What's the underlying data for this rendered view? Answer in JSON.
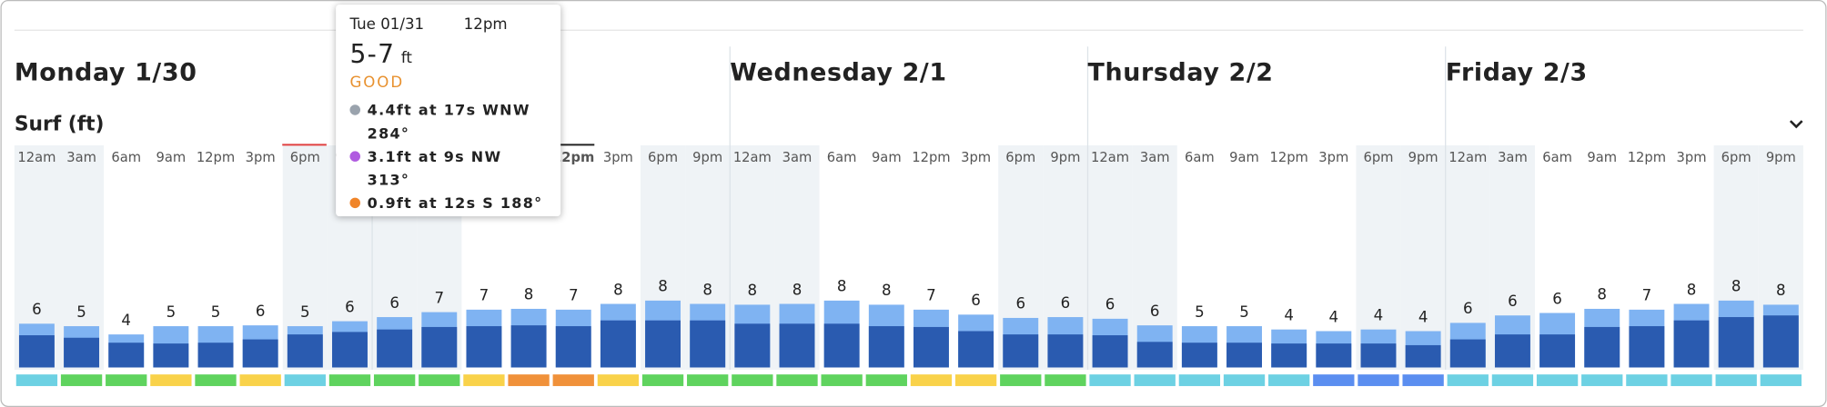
{
  "header": {
    "days": [
      "Monday 1/30",
      null,
      "Wednesday 2/1",
      "Thursday 2/2",
      "Friday 2/3"
    ]
  },
  "chart_data": {
    "type": "bar",
    "title": "Surf (ft)",
    "categories": [
      "12am",
      "3am",
      "6am",
      "9am",
      "12pm",
      "3pm",
      "6pm",
      "9pm",
      "12am",
      "3am",
      "6am",
      "9am",
      "12pm",
      "3pm",
      "6pm",
      "9pm",
      "12am",
      "3am",
      "6am",
      "9am",
      "12pm",
      "3pm",
      "6pm",
      "9pm",
      "12am",
      "3am",
      "6am",
      "9am",
      "12pm",
      "3pm",
      "6pm",
      "9pm",
      "12am",
      "3am",
      "6am",
      "9am",
      "12pm",
      "3pm",
      "6pm",
      "9pm"
    ],
    "values_min": [
      3.9,
      3.6,
      3.0,
      2.9,
      3.0,
      3.4,
      4.0,
      4.3,
      4.6,
      4.9,
      5.0,
      5.1,
      5.0,
      5.7,
      5.7,
      5.7,
      5.3,
      5.3,
      5.3,
      5.0,
      4.9,
      4.4,
      4.0,
      4.0,
      3.9,
      3.1,
      3.0,
      3.0,
      2.9,
      2.9,
      2.9,
      2.7,
      3.4,
      4.0,
      4.0,
      4.9,
      5.0,
      5.7,
      6.1,
      6.3
    ],
    "values_max": [
      5.3,
      5.0,
      4.0,
      5.0,
      5.0,
      5.1,
      5.0,
      5.6,
      6.1,
      6.7,
      7.0,
      7.1,
      7.0,
      7.7,
      8.1,
      7.7,
      7.6,
      7.7,
      8.1,
      7.6,
      7.0,
      6.4,
      6.0,
      6.1,
      5.9,
      5.1,
      5.0,
      5.0,
      4.6,
      4.4,
      4.6,
      4.4,
      5.4,
      6.3,
      6.6,
      7.1,
      7.0,
      7.7,
      8.1,
      7.6
    ],
    "labels": [
      6,
      5,
      4,
      5,
      5,
      6,
      5,
      6,
      6,
      7,
      7,
      8,
      7,
      8,
      8,
      8,
      8,
      8,
      8,
      8,
      7,
      6,
      6,
      6,
      6,
      6,
      5,
      5,
      4,
      4,
      4,
      4,
      6,
      6,
      6,
      8,
      7,
      8,
      8,
      8
    ],
    "min_color": "#2a5bb0",
    "max_color": "#7fb3f2",
    "condition_colors": [
      "#6dd1e3",
      "#5fd35e",
      "#5fd35e",
      "#f9d24a",
      "#5fd35e",
      "#f9d24a",
      "#6dd1e3",
      "#5fd35e",
      "#5fd35e",
      "#5fd35e",
      "#f9d24a",
      "#f0913a",
      "#f0913a",
      "#f9d24a",
      "#5fd35e",
      "#5fd35e",
      "#5fd35e",
      "#5fd35e",
      "#5fd35e",
      "#5fd35e",
      "#f9d24a",
      "#f9d24a",
      "#5fd35e",
      "#5fd35e",
      "#6dd1e3",
      "#6dd1e3",
      "#6dd1e3",
      "#6dd1e3",
      "#6dd1e3",
      "#5b8ef0",
      "#5b8ef0",
      "#5b8ef0",
      "#6dd1e3",
      "#6dd1e3",
      "#6dd1e3",
      "#6dd1e3",
      "#6dd1e3",
      "#6dd1e3",
      "#6dd1e3",
      "#6dd1e3"
    ]
  },
  "tooltip": {
    "day": "Tue 01/31",
    "time": "12pm",
    "range": "5-7",
    "unit": "ft",
    "rating": "GOOD",
    "swells": [
      {
        "text": "4.4ft at 17s WNW 284°",
        "color": "#9aa3ad"
      },
      {
        "text": "3.1ft at 9s NW 313°",
        "color": "#b05be0"
      },
      {
        "text": "0.9ft at 12s S 188°",
        "color": "#f0852a"
      }
    ]
  }
}
